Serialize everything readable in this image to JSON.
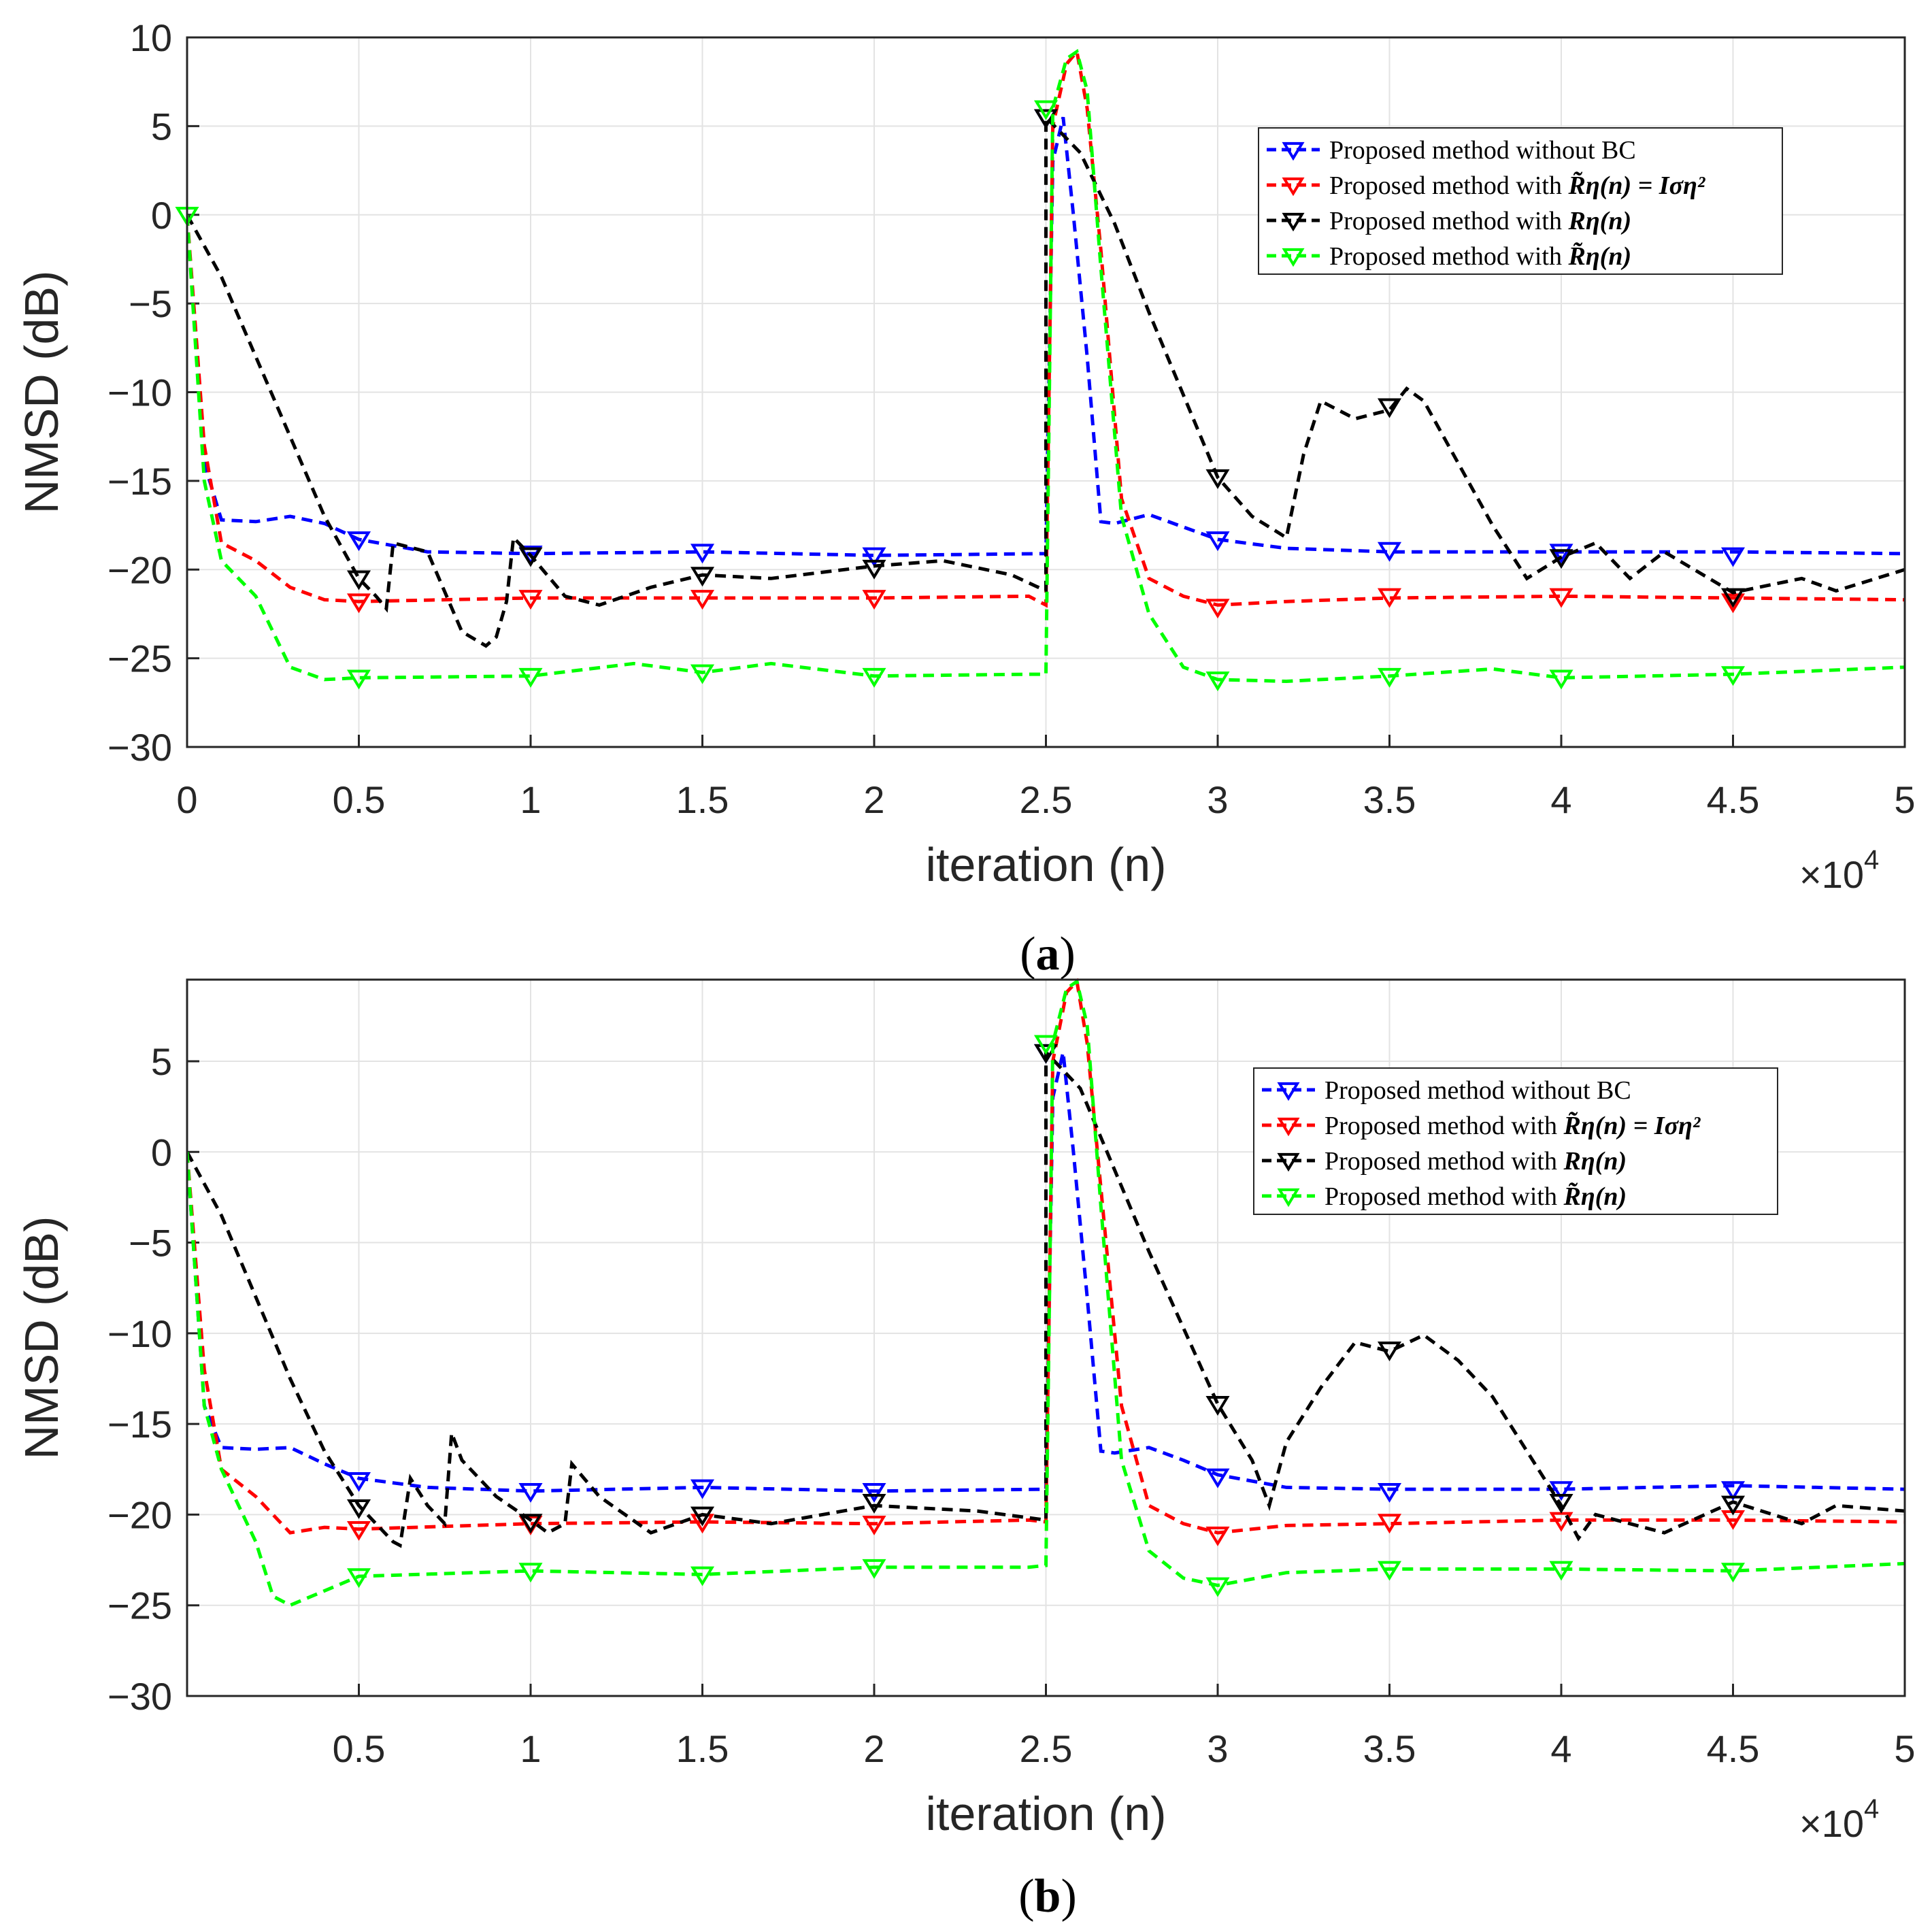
{
  "colors": {
    "blue": "#0000ff",
    "red": "#ff0000",
    "black": "#000000",
    "green": "#00ff00"
  },
  "chart_data": [
    {
      "type": "line",
      "panel": "a",
      "caption_bold": "a",
      "xlabel": "iteration (n)",
      "ylabel": "NMSD (dB)",
      "x_multiplier_base": "×10",
      "x_multiplier_exp": "4",
      "xlim": [
        0,
        5
      ],
      "ylim": [
        -30,
        10
      ],
      "x_ticks": [
        "0",
        "0.5",
        "1",
        "1.5",
        "2",
        "2.5",
        "3",
        "3.5",
        "4",
        "4.5",
        "5"
      ],
      "y_ticks": [
        "10",
        "5",
        "0",
        "−5",
        "−10",
        "−15",
        "−20",
        "−25",
        "−30"
      ],
      "legend_position": "upper-right",
      "series": [
        {
          "name": "Proposed method without BC",
          "legend_pre": "Proposed method without BC",
          "legend_math": "",
          "color": "blue",
          "x": [
            0,
            0.05,
            0.1,
            0.2,
            0.3,
            0.4,
            0.5,
            0.7,
            1.0,
            1.5,
            2.0,
            2.5,
            2.5,
            2.52,
            2.55,
            2.58,
            2.62,
            2.66,
            2.7,
            2.8,
            2.9,
            3.0,
            3.2,
            3.5,
            4.0,
            4.5,
            5.0
          ],
          "y": [
            0,
            -14,
            -17.2,
            -17.3,
            -17.0,
            -17.4,
            -18.3,
            -19.0,
            -19.1,
            -19.0,
            -19.2,
            -19.1,
            -19.1,
            3,
            5.5,
            0,
            -8,
            -17.3,
            -17.4,
            -16.9,
            -17.6,
            -18.3,
            -18.8,
            -19.0,
            -19.0,
            -19.0,
            -19.1
          ],
          "markers_x": [
            0.5,
            1.0,
            1.5,
            2.0,
            2.5,
            3.0,
            3.5,
            4.0,
            4.5
          ],
          "markers_y": [
            -18.3,
            -19.1,
            -19.0,
            -19.2,
            5.5,
            -18.3,
            -18.9,
            -19.0,
            -19.2
          ]
        },
        {
          "name": "Proposed method with R̃η(n) = Iση²",
          "legend_pre": "Proposed method with ",
          "legend_math": "R̃η(n) = Iση²",
          "color": "red",
          "x": [
            0,
            0.05,
            0.1,
            0.2,
            0.3,
            0.4,
            0.5,
            1.0,
            1.5,
            2.0,
            2.45,
            2.5,
            2.5,
            2.52,
            2.56,
            2.59,
            2.62,
            2.66,
            2.72,
            2.8,
            2.9,
            3.0,
            3.2,
            3.5,
            4.0,
            4.5,
            5.0
          ],
          "y": [
            0,
            -13,
            -18.5,
            -19.5,
            -21.0,
            -21.7,
            -21.8,
            -21.6,
            -21.6,
            -21.6,
            -21.5,
            -22.0,
            -22.0,
            5,
            8.5,
            9.2,
            6,
            -2,
            -16,
            -20.5,
            -21.5,
            -22.0,
            -21.8,
            -21.6,
            -21.5,
            -21.6,
            -21.7
          ],
          "markers_x": [
            0.5,
            1.0,
            1.5,
            2.0,
            3.0,
            3.5,
            4.0,
            4.5
          ],
          "markers_y": [
            -21.8,
            -21.6,
            -21.6,
            -21.6,
            -22.1,
            -21.5,
            -21.5,
            -21.8
          ]
        },
        {
          "name": "Proposed method with Rη(n)",
          "legend_pre": "Proposed method with ",
          "legend_math": "Rη(n)",
          "color": "black",
          "x": [
            0,
            0.1,
            0.2,
            0.3,
            0.4,
            0.5,
            0.55,
            0.58,
            0.6,
            0.7,
            0.8,
            0.87,
            0.9,
            0.93,
            0.95,
            1.0,
            1.1,
            1.2,
            1.35,
            1.5,
            1.7,
            2.0,
            2.2,
            2.4,
            2.5,
            2.5,
            2.6,
            2.7,
            2.8,
            3.0,
            3.1,
            3.2,
            3.25,
            3.3,
            3.4,
            3.5,
            3.55,
            3.6,
            3.7,
            3.8,
            3.9,
            4.0,
            4.1,
            4.2,
            4.3,
            4.5,
            4.7,
            4.8,
            5.0
          ],
          "y": [
            0,
            -3.5,
            -8,
            -12.5,
            -17,
            -20.5,
            -21.5,
            -22.2,
            -18.5,
            -19,
            -23.5,
            -24.3,
            -23.8,
            -21.8,
            -18.2,
            -19.2,
            -21.5,
            -22,
            -21,
            -20.3,
            -20.5,
            -19.8,
            -19.5,
            -20.3,
            -21.2,
            5.5,
            3.5,
            -0.5,
            -5.5,
            -14.8,
            -17,
            -18.2,
            -13.5,
            -10.5,
            -11.5,
            -11,
            -9.8,
            -10.5,
            -14,
            -17.5,
            -20.5,
            -19.3,
            -18.5,
            -20.5,
            -19,
            -21.3,
            -20.5,
            -21.2,
            -20
          ],
          "markers_x": [
            0.5,
            1.0,
            1.5,
            2.0,
            2.5,
            3.0,
            3.5,
            4.0,
            4.5
          ],
          "markers_y": [
            -20.5,
            -19.2,
            -20.3,
            -19.9,
            5.5,
            -14.8,
            -10.8,
            -19.3,
            -21.5
          ]
        },
        {
          "name": "Proposed method with R̃η(n)",
          "legend_pre": "Proposed method with ",
          "legend_math": "R̃η(n)",
          "color": "green",
          "x": [
            0,
            0.05,
            0.1,
            0.2,
            0.3,
            0.4,
            0.5,
            1.0,
            1.3,
            1.5,
            1.7,
            2.0,
            2.45,
            2.5,
            2.5,
            2.52,
            2.56,
            2.59,
            2.62,
            2.66,
            2.72,
            2.8,
            2.9,
            3.0,
            3.2,
            3.5,
            3.8,
            4.0,
            4.5,
            5.0
          ],
          "y": [
            0,
            -15,
            -19.5,
            -21.5,
            -25.5,
            -26.2,
            -26.1,
            -26.0,
            -25.3,
            -25.8,
            -25.3,
            -26.0,
            -25.9,
            -25.9,
            -25.9,
            6,
            8.8,
            9.2,
            7,
            -3,
            -17,
            -22.5,
            -25.5,
            -26.2,
            -26.3,
            -26.0,
            -25.6,
            -26.1,
            -25.9,
            -25.5
          ],
          "markers_x": [
            0,
            0.5,
            1.0,
            1.5,
            2.0,
            2.5,
            3.0,
            3.5,
            4.0,
            4.5
          ],
          "markers_y": [
            0,
            -26.1,
            -26.0,
            -25.8,
            -26.0,
            6,
            -26.2,
            -26.0,
            -26.1,
            -25.9
          ]
        }
      ]
    },
    {
      "type": "line",
      "panel": "b",
      "caption_bold": "b",
      "xlabel": "iteration (n)",
      "ylabel": "NMSD (dB)",
      "x_multiplier_base": "×10",
      "x_multiplier_exp": "4",
      "xlim": [
        0,
        5
      ],
      "ylim": [
        -30,
        9.5
      ],
      "x_ticks": [
        "0.5",
        "1",
        "1.5",
        "2",
        "2.5",
        "3",
        "3.5",
        "4",
        "4.5",
        "5"
      ],
      "y_ticks": [
        "5",
        "0",
        "−5",
        "−10",
        "−15",
        "−20",
        "−25",
        "−30"
      ],
      "legend_position": "upper-right",
      "series": [
        {
          "name": "Proposed method without BC",
          "legend_pre": "Proposed method without BC",
          "legend_math": "",
          "color": "blue",
          "x": [
            0,
            0.05,
            0.1,
            0.2,
            0.3,
            0.4,
            0.5,
            0.7,
            1.0,
            1.5,
            2.0,
            2.5,
            2.5,
            2.52,
            2.55,
            2.58,
            2.62,
            2.66,
            2.7,
            2.8,
            2.9,
            3.0,
            3.2,
            3.5,
            4.0,
            4.5,
            5.0
          ],
          "y": [
            0,
            -14,
            -16.3,
            -16.4,
            -16.3,
            -17.2,
            -18.0,
            -18.5,
            -18.7,
            -18.5,
            -18.7,
            -18.6,
            -18.6,
            3,
            5.5,
            0,
            -8,
            -16.5,
            -16.6,
            -16.3,
            -17.0,
            -17.8,
            -18.5,
            -18.6,
            -18.6,
            -18.4,
            -18.6
          ],
          "markers_x": [
            0.5,
            1.0,
            1.5,
            2.0,
            2.5,
            3.0,
            3.5,
            4.0,
            4.5
          ],
          "markers_y": [
            -18.1,
            -18.7,
            -18.5,
            -18.7,
            5.5,
            -17.9,
            -18.7,
            -18.6,
            -18.6
          ]
        },
        {
          "name": "Proposed method with R̃η(n) = Iση²",
          "legend_pre": "Proposed method with ",
          "legend_math": "R̃η(n) = Iση²",
          "color": "red",
          "x": [
            0,
            0.05,
            0.1,
            0.2,
            0.3,
            0.4,
            0.5,
            1.0,
            1.5,
            2.0,
            2.45,
            2.5,
            2.5,
            2.52,
            2.56,
            2.59,
            2.62,
            2.66,
            2.72,
            2.8,
            2.9,
            3.0,
            3.2,
            3.5,
            4.0,
            4.5,
            5.0
          ],
          "y": [
            0,
            -12,
            -17.5,
            -19.0,
            -21.0,
            -20.7,
            -20.8,
            -20.5,
            -20.4,
            -20.5,
            -20.3,
            -20.4,
            -20.4,
            5,
            8.8,
            9.4,
            6,
            -2,
            -14,
            -19.5,
            -20.5,
            -21.0,
            -20.6,
            -20.5,
            -20.3,
            -20.3,
            -20.4
          ],
          "markers_x": [
            0.5,
            1.0,
            1.5,
            2.0,
            3.0,
            3.5,
            4.0,
            4.5
          ],
          "markers_y": [
            -20.8,
            -20.5,
            -20.4,
            -20.5,
            -21.1,
            -20.4,
            -20.3,
            -20.2
          ]
        },
        {
          "name": "Proposed method with Rη(n)",
          "legend_pre": "Proposed method with ",
          "legend_math": "Rη(n)",
          "color": "black",
          "x": [
            0,
            0.1,
            0.2,
            0.3,
            0.4,
            0.5,
            0.6,
            0.62,
            0.65,
            0.7,
            0.75,
            0.77,
            0.8,
            0.9,
            1.0,
            1.05,
            1.1,
            1.12,
            1.2,
            1.35,
            1.5,
            1.7,
            2.0,
            2.3,
            2.5,
            2.5,
            2.6,
            2.7,
            2.8,
            3.0,
            3.1,
            3.15,
            3.2,
            3.3,
            3.4,
            3.5,
            3.6,
            3.7,
            3.8,
            3.9,
            4.0,
            4.05,
            4.1,
            4.3,
            4.5,
            4.7,
            4.8,
            5.0
          ],
          "y": [
            0,
            -3.5,
            -8,
            -12.5,
            -16.5,
            -19.5,
            -21.5,
            -21.7,
            -18,
            -19.5,
            -20.5,
            -15.5,
            -17,
            -19,
            -20.3,
            -21,
            -20.5,
            -17.2,
            -19,
            -21,
            -20,
            -20.5,
            -19.5,
            -19.8,
            -20.3,
            5.5,
            3.5,
            -1,
            -5.5,
            -13.9,
            -17,
            -19.5,
            -16,
            -13,
            -10.5,
            -11,
            -10.1,
            -11.5,
            -13.5,
            -16.5,
            -19.5,
            -21.3,
            -20,
            -21,
            -19.3,
            -20.5,
            -19.5,
            -19.8
          ],
          "markers_x": [
            0.5,
            1.0,
            1.5,
            2.0,
            2.5,
            3.0,
            3.5,
            4.0,
            4.5
          ],
          "markers_y": [
            -19.6,
            -20.4,
            -20.0,
            -19.3,
            5.5,
            -13.9,
            -10.9,
            -19.3,
            -19.4
          ]
        },
        {
          "name": "Proposed method with R̃η(n)",
          "legend_pre": "Proposed method with ",
          "legend_math": "R̃η(n)",
          "color": "green",
          "x": [
            0,
            0.05,
            0.1,
            0.2,
            0.25,
            0.3,
            0.4,
            0.5,
            1.0,
            1.5,
            2.0,
            2.45,
            2.5,
            2.5,
            2.52,
            2.56,
            2.59,
            2.62,
            2.66,
            2.72,
            2.8,
            2.9,
            3.0,
            3.2,
            3.5,
            4.0,
            4.5,
            5.0
          ],
          "y": [
            0,
            -14,
            -17.5,
            -21.5,
            -24.5,
            -25.0,
            -24.2,
            -23.4,
            -23.1,
            -23.3,
            -22.9,
            -22.9,
            -22.8,
            -22.8,
            6,
            9.0,
            9.4,
            7,
            -3,
            -17,
            -22.0,
            -23.5,
            -23.9,
            -23.2,
            -23.0,
            -23.0,
            -23.1,
            -22.7
          ],
          "markers_x": [
            0.5,
            1.0,
            1.5,
            2.0,
            2.5,
            3.0,
            3.5,
            4.0,
            4.5
          ],
          "markers_y": [
            -23.4,
            -23.1,
            -23.3,
            -22.9,
            6,
            -23.9,
            -23.0,
            -23.0,
            -23.1
          ]
        }
      ]
    }
  ]
}
